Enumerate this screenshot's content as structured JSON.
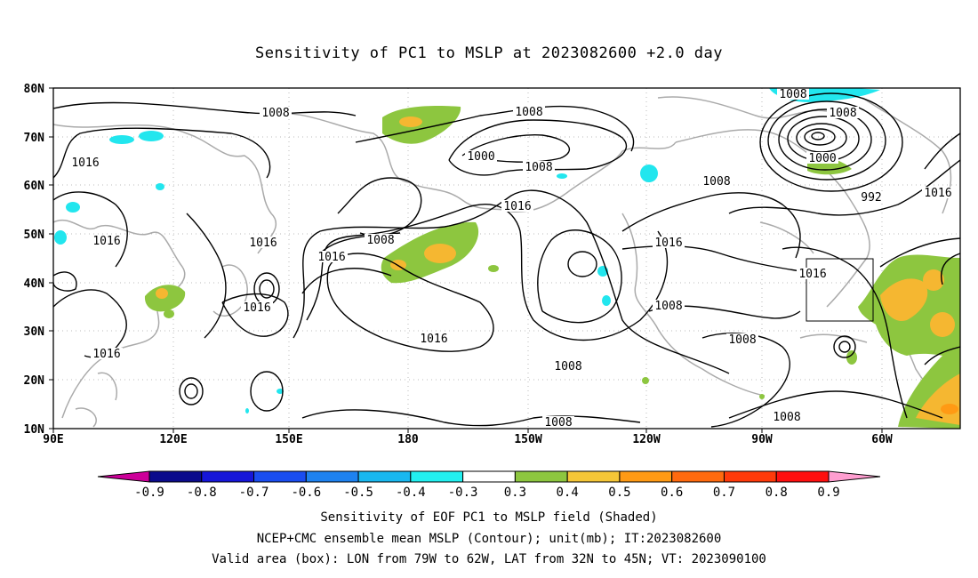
{
  "title": "Sensitivity of PC1 to MSLP at 2023082600 +2.0 day",
  "colors": {
    "coast": "#aaaaaa",
    "contour": "#000000",
    "grid": "#bbbbbb",
    "green": "#8dc63f",
    "orange": "#f5b731",
    "cyan": "#22e6ee"
  },
  "map": {
    "lon_range": [
      "90E",
      "60W"
    ],
    "lat_range": [
      "10N",
      "80N"
    ],
    "lon_labels": [
      "90E",
      "120E",
      "150E",
      "180",
      "150W",
      "120W",
      "90W",
      "60W"
    ],
    "lat_labels": [
      "80N",
      "70N",
      "60N",
      "50N",
      "40N",
      "30N",
      "20N",
      "10N"
    ],
    "contour_labels": [
      "1008",
      "1008",
      "1000",
      "1008",
      "1016",
      "1016",
      "1016",
      "1008",
      "1016",
      "1016",
      "1016",
      "1008",
      "1016",
      "1016",
      "1008",
      "1008",
      "1016",
      "1008",
      "1008",
      "1008",
      "1008",
      "1000",
      "992",
      "1008",
      "1016",
      "1016"
    ]
  },
  "colorbar": {
    "labels": [
      "-0.9",
      "-0.8",
      "-0.7",
      "-0.6",
      "-0.5",
      "-0.4",
      "-0.3",
      "0.3",
      "0.4",
      "0.5",
      "0.6",
      "0.7",
      "0.8",
      "0.9"
    ],
    "colors": [
      "#cc0099",
      "#0b0b8c",
      "#1616d9",
      "#1a4df0",
      "#1e82f0",
      "#19b8f0",
      "#22f0f0",
      "#ffffff",
      "#8dc63f",
      "#f5c637",
      "#ff9a14",
      "#ff6a0e",
      "#ff3a0a",
      "#ff0f0f",
      "#ff9ed0"
    ]
  },
  "footer": {
    "line1": "Sensitivity of EOF PC1 to MSLP field (Shaded)",
    "line2": "NCEP+CMC ensemble mean MSLP (Contour); unit(mb); IT:2023082600",
    "line3": "Valid area (box): LON from 79W to 62W, LAT from 32N to 45N; VT: 2023090100"
  }
}
